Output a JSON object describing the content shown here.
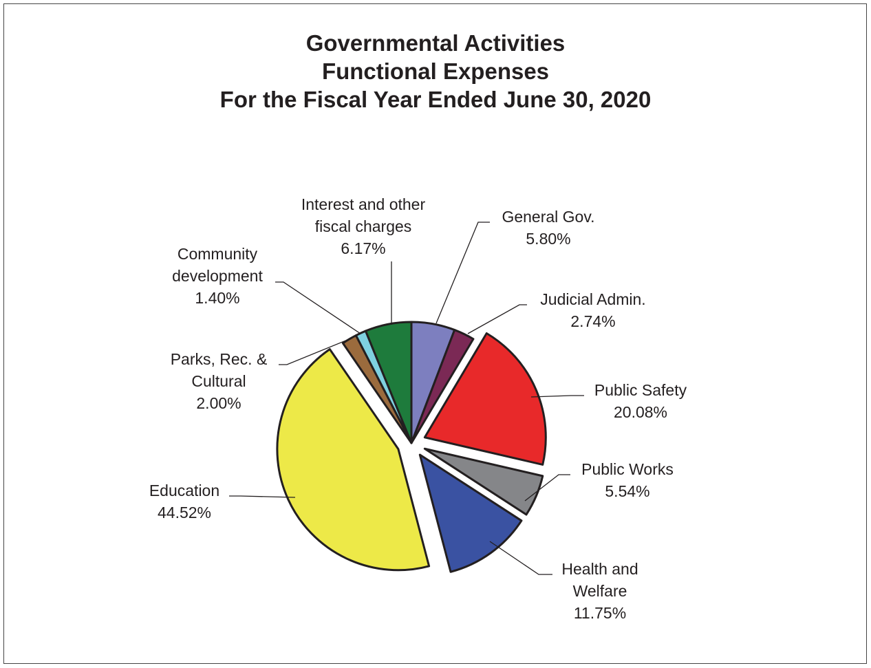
{
  "chart_data": {
    "type": "pie",
    "title": [
      "Governmental Activities",
      "Functional Expenses",
      "For the Fiscal Year Ended June 30, 2020"
    ],
    "slices": [
      {
        "label": [
          "General Gov."
        ],
        "value_label": "5.80%",
        "value": 5.8,
        "color": "#7d7fbf",
        "exploded": false
      },
      {
        "label": [
          "Judicial Admin."
        ],
        "value_label": "2.74%",
        "value": 2.74,
        "color": "#7b2955",
        "exploded": false
      },
      {
        "label": [
          "Public Safety"
        ],
        "value_label": "20.08%",
        "value": 20.08,
        "color": "#e8292a",
        "exploded": true
      },
      {
        "label": [
          "Public Works"
        ],
        "value_label": "5.54%",
        "value": 5.54,
        "color": "#858689",
        "exploded": true
      },
      {
        "label": [
          "Health and",
          "Welfare"
        ],
        "value_label": "11.75%",
        "value": 11.75,
        "color": "#3a52a2",
        "exploded": true
      },
      {
        "label": [
          "Education"
        ],
        "value_label": "44.52%",
        "value": 44.52,
        "color": "#ede948",
        "exploded": true
      },
      {
        "label": [
          "Parks, Rec. &",
          "Cultural"
        ],
        "value_label": "2.00%",
        "value": 2.0,
        "color": "#9b6b3d",
        "exploded": false
      },
      {
        "label": [
          "Community",
          "development"
        ],
        "value_label": "1.40%",
        "value": 1.4,
        "color": "#7fd1e0",
        "exploded": false
      },
      {
        "label": [
          "Interest and other",
          "fiscal charges"
        ],
        "value_label": "6.17%",
        "value": 6.17,
        "color": "#1e7b3c",
        "exploded": false
      }
    ]
  }
}
